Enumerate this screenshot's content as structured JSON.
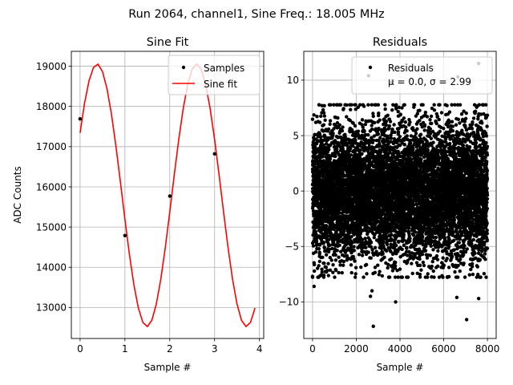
{
  "figure": {
    "suptitle": "Run 2064, channel1, Sine Freq.: 18.005 MHz"
  },
  "colors": {
    "fit": "#ff0000",
    "points": "#000000",
    "grid": "#b0b0b0",
    "legend_edge": "#cccccc"
  },
  "chart_data": [
    {
      "type": "line",
      "title": "Sine Fit",
      "xlabel": "Sample #",
      "ylabel": "ADC Counts",
      "xlim": [
        -0.195,
        4.095
      ],
      "ylim": [
        12230,
        19370
      ],
      "xticks": [
        0,
        1,
        2,
        3,
        4
      ],
      "xtick_labels": [
        "0",
        "1",
        "2",
        "3",
        "4"
      ],
      "yticks": [
        13000,
        14000,
        15000,
        16000,
        17000,
        18000,
        19000
      ],
      "ytick_labels": [
        "13000",
        "14000",
        "15000",
        "16000",
        "17000",
        "18000",
        "19000"
      ],
      "grid": true,
      "legend_position": "upper right",
      "fit_params": {
        "offset": 15790,
        "amplitude": 3265,
        "period": 2.22,
        "peak_x": 0.38
      },
      "fit_range": [
        0,
        3.9
      ],
      "fit_step": 0.1,
      "series": [
        {
          "name": "Samples",
          "kind": "scatter",
          "x": [
            0,
            1,
            2,
            3
          ],
          "y": [
            17690,
            14790,
            15770,
            16820
          ]
        },
        {
          "name": "Sine fit",
          "kind": "line"
        }
      ]
    },
    {
      "type": "scatter",
      "title": "Residuals",
      "xlabel": "Sample #",
      "ylabel": "",
      "xlim": [
        -400,
        8400
      ],
      "ylim": [
        -13.3,
        12.6
      ],
      "xticks": [
        0,
        2000,
        4000,
        6000,
        8000
      ],
      "xtick_labels": [
        "0",
        "2000",
        "4000",
        "6000",
        "8000"
      ],
      "yticks": [
        -10,
        -5,
        0,
        5,
        10
      ],
      "ytick_labels": [
        "−10",
        "−5",
        "0",
        "5",
        "10"
      ],
      "grid": true,
      "legend_position": "upper right",
      "legend_label": "Residuals",
      "legend_stats": "μ = 0.0, σ = 2.99",
      "distribution": {
        "mean": 0.0,
        "std": 2.99,
        "n": 8000,
        "seed": 2064
      },
      "outliers": [
        {
          "x": 2780,
          "y": -12.2
        },
        {
          "x": 7050,
          "y": -11.6
        },
        {
          "x": 2650,
          "y": -9.5
        },
        {
          "x": 3800,
          "y": -10.0
        },
        {
          "x": 2720,
          "y": -9.0
        },
        {
          "x": 7600,
          "y": -9.7
        },
        {
          "x": 6600,
          "y": -9.6
        },
        {
          "x": 70,
          "y": -8.6
        },
        {
          "x": 7600,
          "y": 11.5
        },
        {
          "x": 2560,
          "y": 10.4
        },
        {
          "x": 3620,
          "y": 9.8
        },
        {
          "x": 6650,
          "y": 10.3
        }
      ]
    }
  ]
}
